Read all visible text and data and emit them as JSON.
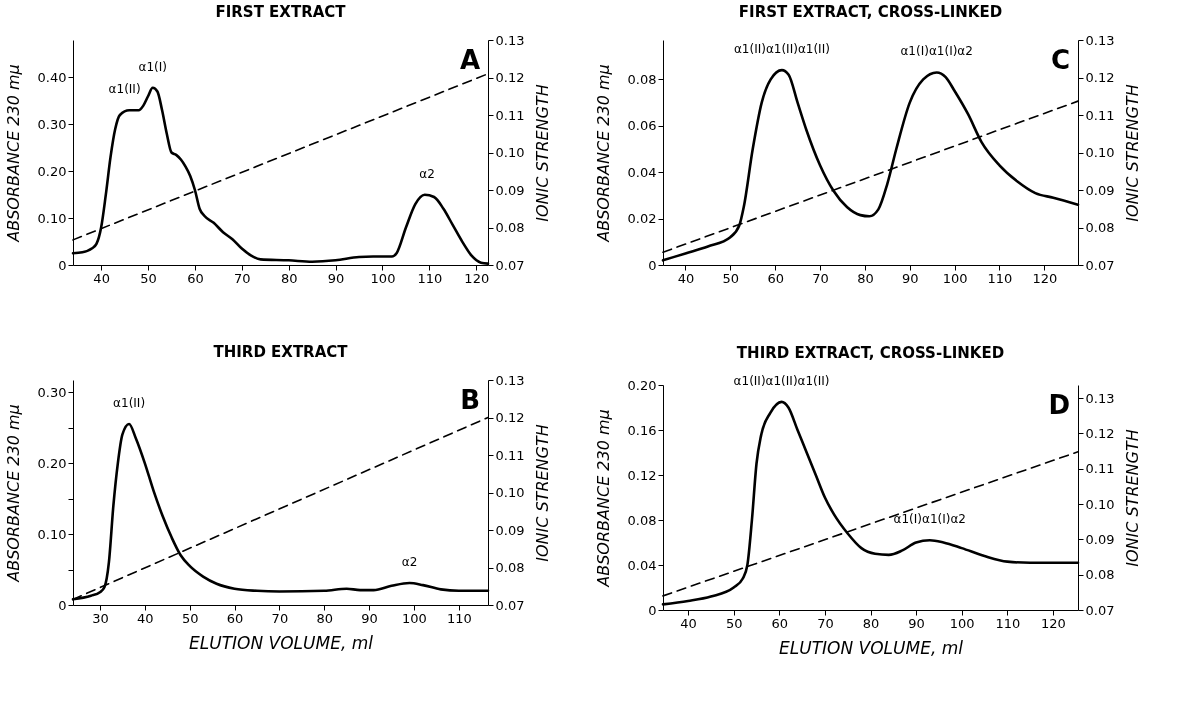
{
  "chart_data": [
    {
      "type": "line",
      "title": "FIRST EXTRACT",
      "ylabel": "ABSORBANCE 230 mμ",
      "y2label": "IONIC STRENGTH",
      "xlim": [
        34,
        122.5
      ],
      "xticks": [
        40,
        50,
        60,
        70,
        80,
        90,
        100,
        110,
        120
      ],
      "ylim": [
        0,
        0.48
      ],
      "yticks": [
        0,
        {
          "value": 0.1,
          "label": "0.10"
        },
        {
          "value": 0.2,
          "label": "0.20"
        },
        {
          "value": 0.3,
          "label": "0.30"
        },
        {
          "value": 0.4,
          "label": "0.40"
        }
      ],
      "y2lim": [
        0.07,
        0.13
      ],
      "y2ticks": [
        {
          "value": 0.07,
          "label": "0.07"
        },
        {
          "value": 0.08,
          "label": "0.08"
        },
        {
          "value": 0.09,
          "label": "0.09"
        },
        {
          "value": 0.1,
          "label": "0.10"
        },
        0.11,
        0.12,
        0.13
      ],
      "grid": false,
      "marker": "none",
      "series": [
        {
          "type": "line",
          "color": "#000000",
          "line_style": "solid",
          "x": [
            34,
            36,
            38,
            39,
            40,
            41,
            42,
            43,
            44,
            46,
            48,
            49,
            50,
            51,
            52,
            53,
            54,
            55,
            56,
            57,
            58,
            59,
            60,
            61,
            62,
            64,
            66,
            68,
            70,
            72,
            74,
            80,
            85,
            90,
            95,
            98,
            102,
            103,
            105,
            107,
            109,
            111,
            113,
            115,
            117,
            119,
            121,
            122.5
          ],
          "values": [
            0.025,
            0.027,
            0.035,
            0.045,
            0.08,
            0.15,
            0.23,
            0.29,
            0.32,
            0.33,
            0.33,
            0.34,
            0.36,
            0.378,
            0.37,
            0.33,
            0.28,
            0.24,
            0.235,
            0.225,
            0.21,
            0.19,
            0.16,
            0.12,
            0.105,
            0.09,
            0.07,
            0.055,
            0.035,
            0.02,
            0.012,
            0.01,
            0.007,
            0.01,
            0.017,
            0.018,
            0.018,
            0.025,
            0.08,
            0.13,
            0.15,
            0.145,
            0.12,
            0.085,
            0.05,
            0.02,
            0.005,
            0.003
          ]
        },
        {
          "type": "line",
          "axis": "y2",
          "color": "#000000",
          "line_style": "dashed",
          "x": [
            34,
            122.5
          ],
          "values": [
            0.0767,
            0.121
          ]
        }
      ],
      "annotations": [
        "A",
        {
          "text": "α1(II)",
          "x": 45,
          "y": 0.33
        },
        {
          "text": "α1(I)",
          "x": 51,
          "y": 0.378
        },
        {
          "text": "α2",
          "x": 109.5,
          "y": 0.15
        }
      ]
    },
    {
      "type": "line",
      "title": "FIRST EXTRACT, CROSS-LINKED",
      "ylabel": "ABSORBANCE 230 mμ",
      "y2label": "IONIC STRENGTH",
      "xlim": [
        35,
        127.5
      ],
      "xticks": [
        40,
        50,
        60,
        70,
        80,
        90,
        100,
        110,
        120
      ],
      "ylim": [
        0,
        0.097
      ],
      "yticks": [
        0,
        0.02,
        0.04,
        0.06,
        0.08
      ],
      "y2lim": [
        0.07,
        0.13
      ],
      "y2ticks": [
        {
          "value": 0.07,
          "label": "0.07"
        },
        {
          "value": 0.08,
          "label": "0.08"
        },
        {
          "value": 0.09,
          "label": "0.09"
        },
        {
          "value": 0.1,
          "label": "0.10"
        },
        0.11,
        0.12,
        0.13
      ],
      "grid": false,
      "marker": "none",
      "series": [
        {
          "type": "line",
          "color": "#000000",
          "line_style": "solid",
          "x": [
            35,
            40,
            45,
            50,
            52,
            53,
            55,
            57,
            59,
            61.5,
            63,
            65,
            67,
            70,
            73,
            76,
            79,
            81,
            83,
            85,
            87,
            90,
            93,
            96,
            98,
            100,
            103,
            106,
            110,
            114,
            118,
            122,
            127.5
          ],
          "values": [
            0.002,
            0.005,
            0.008,
            0.012,
            0.017,
            0.025,
            0.05,
            0.07,
            0.08,
            0.084,
            0.082,
            0.07,
            0.058,
            0.043,
            0.032,
            0.025,
            0.0215,
            0.021,
            0.024,
            0.035,
            0.05,
            0.07,
            0.08,
            0.083,
            0.081,
            0.075,
            0.065,
            0.053,
            0.043,
            0.036,
            0.031,
            0.029,
            0.026
          ]
        },
        {
          "type": "line",
          "axis": "y2",
          "color": "#000000",
          "line_style": "dashed",
          "x": [
            35,
            127.5
          ],
          "values": [
            0.0734,
            0.1137
          ]
        }
      ],
      "annotations": [
        "C",
        {
          "text": "α1(II)α1(II)α1(II)",
          "x": 61.5,
          "y": 0.084
        },
        {
          "text": "α1(I)α1(I)α2",
          "x": 96,
          "y": 0.083
        }
      ]
    },
    {
      "type": "line",
      "title": "THIRD EXTRACT",
      "xlabel": "ELUTION VOLUME, ml",
      "ylabel": "ABSORBANCE 230 mμ",
      "y2label": "IONIC STRENGTH",
      "xlim": [
        24,
        116.5
      ],
      "xticks": [
        30,
        40,
        50,
        60,
        70,
        80,
        90,
        100,
        110
      ],
      "ylim": [
        0,
        0.317
      ],
      "yticks": [
        0,
        {
          "value": 0.05,
          "label": null
        },
        {
          "value": 0.1,
          "label": "0.10"
        },
        {
          "value": 0.15,
          "label": null
        },
        {
          "value": 0.2,
          "label": "0.20"
        },
        {
          "value": 0.25,
          "label": null
        },
        {
          "value": 0.3,
          "label": "0.30"
        }
      ],
      "y2lim": [
        0.07,
        0.13
      ],
      "y2ticks": [
        {
          "value": 0.07,
          "label": "0.07"
        },
        {
          "value": 0.08,
          "label": "0.08"
        },
        {
          "value": 0.09,
          "label": "0.09"
        },
        {
          "value": 0.1,
          "label": "0.10"
        },
        0.11,
        0.12,
        0.13
      ],
      "grid": false,
      "marker": "none",
      "series": [
        {
          "type": "line",
          "color": "#000000",
          "line_style": "solid",
          "x": [
            24,
            28,
            30,
            31,
            32,
            33,
            34,
            35,
            36.5,
            38,
            40,
            42,
            44,
            46,
            48,
            50,
            53,
            56,
            60,
            65,
            70,
            80,
            85,
            88,
            91,
            95,
            99,
            102,
            106,
            110,
            116.5
          ],
          "values": [
            0.008,
            0.013,
            0.018,
            0.025,
            0.06,
            0.14,
            0.2,
            0.24,
            0.255,
            0.235,
            0.2,
            0.16,
            0.125,
            0.095,
            0.07,
            0.055,
            0.04,
            0.03,
            0.023,
            0.02,
            0.019,
            0.02,
            0.023,
            0.021,
            0.021,
            0.027,
            0.031,
            0.028,
            0.022,
            0.02,
            0.02
          ]
        },
        {
          "type": "line",
          "axis": "y2",
          "color": "#000000",
          "line_style": "dashed",
          "x": [
            24,
            116.5
          ],
          "values": [
            0.0715,
            0.12
          ]
        }
      ],
      "annotations": [
        "B",
        {
          "text": "α1(II)",
          "x": 36.5,
          "y": 0.255
        },
        {
          "text": "α2",
          "x": 99,
          "y": 0.031
        }
      ]
    },
    {
      "type": "line",
      "title": "THIRD EXTRACT, CROSS-LINKED",
      "xlabel": "ELUTION VOLUME, ml",
      "ylabel": "ABSORBANCE 230 mμ",
      "y2label": "IONIC STRENGTH",
      "xlim": [
        34.5,
        125.5
      ],
      "xticks": [
        40,
        50,
        60,
        70,
        80,
        90,
        100,
        110,
        120
      ],
      "ylim": [
        0,
        0.2
      ],
      "yticks": [
        0,
        0.04,
        0.08,
        0.12,
        0.16,
        {
          "value": 0.2,
          "label": "0.20"
        }
      ],
      "y2lim": [
        0.07,
        0.1337
      ],
      "y2ticks": [
        {
          "value": 0.07,
          "label": "0.07"
        },
        {
          "value": 0.08,
          "label": "0.08"
        },
        {
          "value": 0.09,
          "label": "0.09"
        },
        {
          "value": 0.1,
          "label": "0.10"
        },
        0.11,
        0.12,
        0.13
      ],
      "grid": false,
      "marker": "none",
      "series": [
        {
          "type": "line",
          "color": "#000000",
          "line_style": "solid",
          "x": [
            34.5,
            40,
            45,
            50,
            52,
            53,
            54,
            55,
            56,
            58,
            60.5,
            62,
            64,
            66,
            68,
            70,
            72,
            75,
            78,
            81,
            84,
            87,
            90,
            93,
            96,
            100,
            105,
            110,
            115,
            120,
            125.5
          ],
          "values": [
            0.005,
            0.008,
            0.012,
            0.02,
            0.028,
            0.04,
            0.08,
            0.13,
            0.155,
            0.175,
            0.185,
            0.18,
            0.16,
            0.14,
            0.12,
            0.1,
            0.085,
            0.068,
            0.055,
            0.05,
            0.049,
            0.053,
            0.06,
            0.062,
            0.06,
            0.055,
            0.048,
            0.043,
            0.042,
            0.042,
            0.042
          ]
        },
        {
          "type": "line",
          "axis": "y2",
          "color": "#000000",
          "line_style": "dashed",
          "x": [
            34.5,
            125.5
          ],
          "values": [
            0.074,
            0.1148
          ]
        }
      ],
      "annotations": [
        "D",
        {
          "text": "α1(II)α1(II)α1(II)",
          "x": 60.5,
          "y": 0.185
        },
        {
          "text": "α1(I)α1(I)α2",
          "x": 93,
          "y": 0.062
        }
      ]
    }
  ]
}
